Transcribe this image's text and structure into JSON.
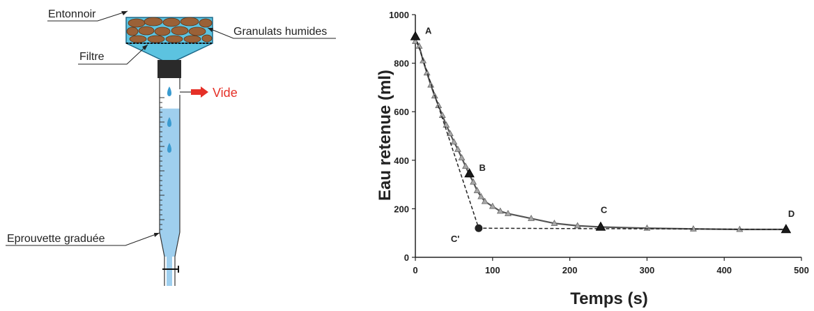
{
  "apparatus": {
    "labels": {
      "funnel": "Entonnoir",
      "granulates": "Granulats humides",
      "filter": "Filtre",
      "vacuum": "Vide",
      "cylinder": "Eprouvette graduée"
    },
    "colors": {
      "water": "#9fcfee",
      "funnel": "#5cc3e0",
      "granulate": "#9a6137",
      "stopper": "#2a2a2a",
      "vacuum_arrow": "#e53027"
    },
    "water_fill_fraction": 0.45
  },
  "chart_data": {
    "type": "line",
    "title": "",
    "xlabel": "Temps (s)",
    "ylabel": "Eau retenue (ml)",
    "xlim": [
      0,
      500
    ],
    "ylim": [
      0,
      1000
    ],
    "xticks": [
      0,
      100,
      200,
      300,
      400,
      500
    ],
    "yticks": [
      0,
      200,
      400,
      600,
      800,
      1000
    ],
    "grid": false,
    "legend": "none",
    "series": [
      {
        "style": "line-with-triangle-markers",
        "color": "#555555",
        "marker_color": "#a8a8a8",
        "x": [
          0,
          5,
          10,
          15,
          20,
          25,
          30,
          35,
          40,
          45,
          50,
          55,
          60,
          65,
          70,
          75,
          80,
          85,
          90,
          100,
          110,
          120,
          150,
          180,
          210,
          240,
          300,
          360,
          420,
          480
        ],
        "y": [
          890,
          870,
          810,
          760,
          710,
          665,
          625,
          585,
          545,
          510,
          475,
          445,
          410,
          375,
          340,
          310,
          275,
          250,
          230,
          210,
          190,
          180,
          160,
          140,
          130,
          125,
          120,
          117,
          115,
          115
        ]
      },
      {
        "style": "dashed-construction",
        "color": "#222222",
        "x": [
          0,
          82,
          480
        ],
        "y": [
          910,
          120,
          115
        ]
      }
    ],
    "points": [
      {
        "label": "A",
        "x": 0,
        "y": 910,
        "marker": "triangle"
      },
      {
        "label": "B",
        "x": 70,
        "y": 345,
        "marker": "triangle"
      },
      {
        "label": "C",
        "x": 240,
        "y": 125,
        "marker": "triangle"
      },
      {
        "label": "D",
        "x": 480,
        "y": 115,
        "marker": "triangle"
      },
      {
        "label": "C'",
        "x": 82,
        "y": 120,
        "marker": "circle"
      }
    ]
  }
}
